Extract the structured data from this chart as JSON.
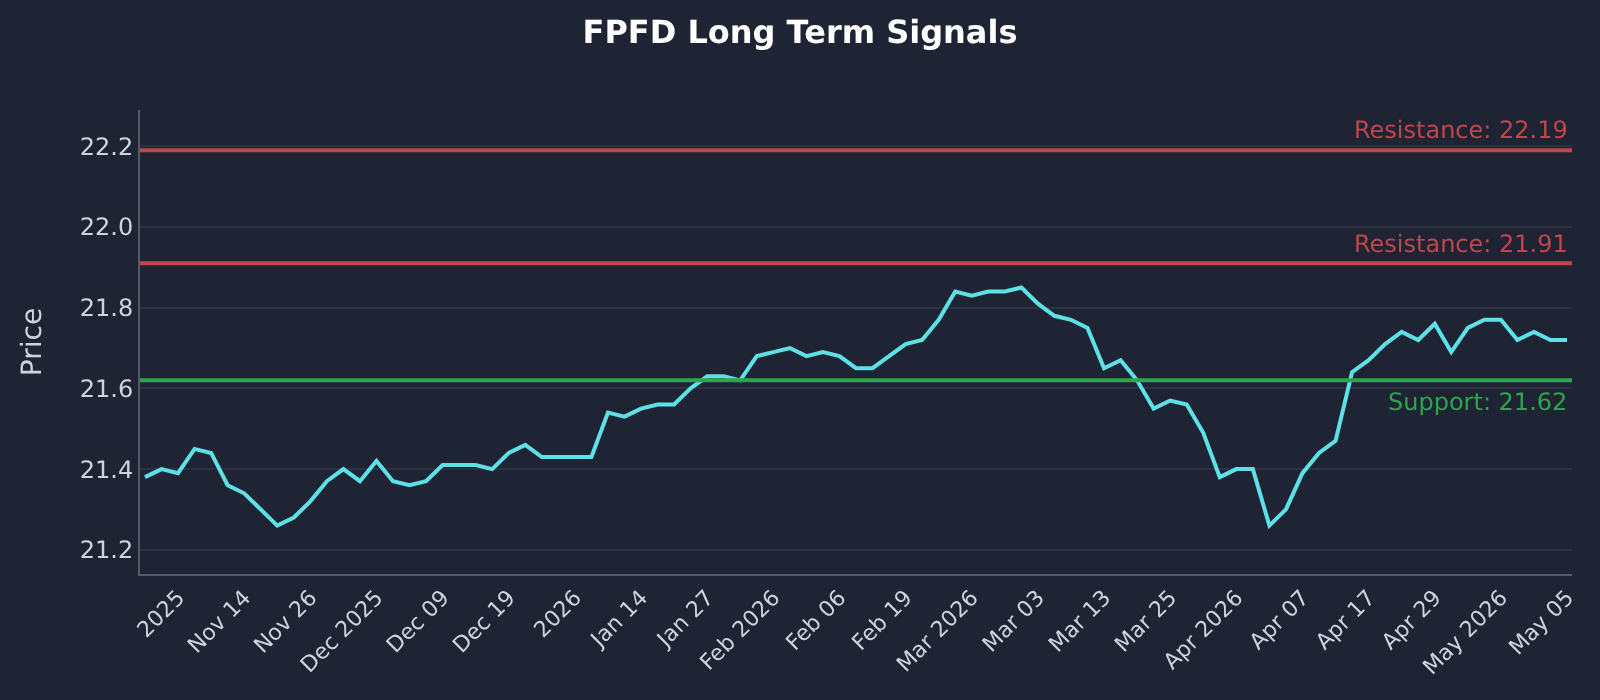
{
  "chart_data": {
    "type": "line",
    "title": "FPFD Long Term Signals",
    "ylabel": "Price",
    "categories": [
      null,
      null,
      "2025",
      null,
      null,
      null,
      "Nov 14",
      null,
      null,
      null,
      "Nov 26",
      null,
      null,
      null,
      "Dec 2025",
      null,
      null,
      null,
      "Dec 09",
      null,
      null,
      null,
      "Dec 19",
      null,
      null,
      null,
      "2026",
      null,
      null,
      null,
      "Jan 14",
      null,
      null,
      null,
      "Jan 27",
      null,
      null,
      null,
      "Feb 2026",
      null,
      null,
      null,
      "Feb 06",
      null,
      null,
      null,
      "Feb 19",
      null,
      null,
      null,
      "Mar 2026",
      null,
      null,
      null,
      "Mar 03",
      null,
      null,
      null,
      "Mar 13",
      null,
      null,
      null,
      "Mar 25",
      null,
      null,
      null,
      "Apr 2026",
      null,
      null,
      null,
      "Apr 07",
      null,
      null,
      null,
      "Apr 17",
      null,
      null,
      null,
      "Apr 29",
      null,
      null,
      null,
      "May 2026",
      null,
      null,
      null,
      "May 05"
    ],
    "series": [
      {
        "color": "#5ce1e6",
        "values": [
          21.38,
          21.4,
          21.39,
          21.45,
          21.44,
          21.36,
          21.34,
          21.3,
          21.26,
          21.28,
          21.32,
          21.37,
          21.4,
          21.37,
          21.42,
          21.37,
          21.36,
          21.37,
          21.41,
          21.41,
          21.41,
          21.4,
          21.44,
          21.46,
          21.43,
          21.43,
          21.43,
          21.43,
          21.54,
          21.53,
          21.55,
          21.56,
          21.56,
          21.6,
          21.63,
          21.63,
          21.62,
          21.68,
          21.69,
          21.7,
          21.68,
          21.69,
          21.68,
          21.65,
          21.65,
          21.68,
          21.71,
          21.72,
          21.77,
          21.84,
          21.83,
          21.84,
          21.84,
          21.85,
          21.81,
          21.78,
          21.77,
          21.75,
          21.65,
          21.67,
          21.62,
          21.55,
          21.57,
          21.56,
          21.49,
          21.38,
          21.4,
          21.4,
          21.26,
          21.3,
          21.39,
          21.44,
          21.47,
          21.64,
          21.67,
          21.71,
          21.74,
          21.72,
          21.76,
          21.69,
          21.75,
          21.77,
          21.77,
          21.72,
          21.74,
          21.72,
          21.72
        ]
      }
    ],
    "ylim": [
      21.14,
      22.29
    ],
    "yticks": [
      21.2,
      21.4,
      21.6,
      21.8,
      {
        "value": 22.0,
        "label": "22.0"
      },
      22.2
    ],
    "grid": "y",
    "marker": "none",
    "line_style": "solid",
    "ref_lines": [
      {
        "axis": "y",
        "value": 22.19,
        "label": "Resistance: 22.19",
        "color": "#c0464b"
      },
      {
        "axis": "y",
        "value": 21.91,
        "label": "Resistance: 21.91",
        "color": "#c0464b"
      },
      {
        "axis": "y",
        "value": 21.62,
        "label": "Support: 21.62",
        "color": "#2ea44f"
      }
    ]
  }
}
